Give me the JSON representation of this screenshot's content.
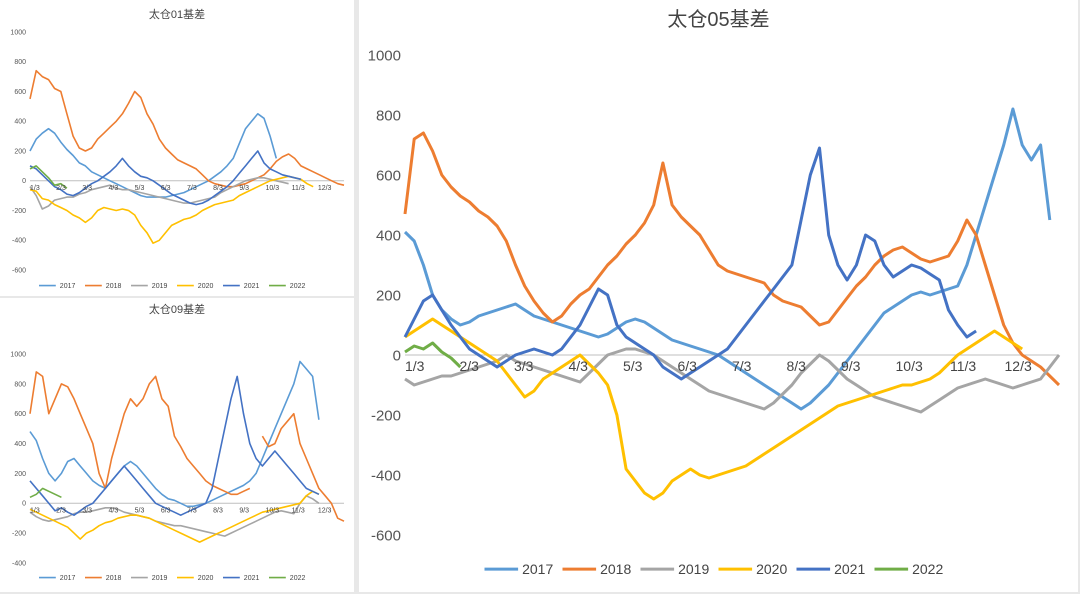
{
  "colors": {
    "2017": "#5b9bd5",
    "2018": "#ed7d31",
    "2019": "#a5a5a5",
    "2020": "#ffc000",
    "2021": "#4472c4",
    "2022": "#70ad47"
  },
  "chart_data": [
    {
      "type": "line",
      "title": "太仓01基差",
      "ylim": [
        -600,
        1000
      ],
      "yticks": [
        "1000",
        "800",
        "600",
        "400",
        "200",
        "0",
        "-200",
        "-400",
        "-600"
      ],
      "xticks": [
        "1/3",
        "2/3",
        "3/3",
        "4/3",
        "5/3",
        "6/3",
        "7/3",
        "8/3",
        "9/3",
        "10/3",
        "11/3",
        "12/3"
      ],
      "grid": false,
      "legend_position": "bottom",
      "series": [
        {
          "name": "2017",
          "values": [
            200,
            280,
            320,
            350,
            320,
            260,
            210,
            170,
            120,
            100,
            60,
            40,
            20,
            0,
            -20,
            -40,
            -60,
            -80,
            -100,
            -110,
            -110,
            -110,
            -110,
            -100,
            -90,
            -80,
            -60,
            -40,
            -20,
            0,
            30,
            60,
            100,
            150,
            250,
            350,
            400,
            450,
            420,
            300,
            150
          ]
        },
        {
          "name": "2018",
          "values": [
            550,
            740,
            700,
            680,
            620,
            600,
            450,
            300,
            220,
            200,
            220,
            280,
            320,
            360,
            400,
            450,
            520,
            600,
            560,
            450,
            380,
            280,
            220,
            180,
            140,
            120,
            100,
            80,
            40,
            0,
            -20,
            -30,
            -40,
            -40,
            -30,
            -20,
            0,
            20,
            40,
            80,
            130,
            160,
            180,
            150,
            100,
            80,
            60,
            40,
            20,
            0,
            -20,
            -30
          ]
        },
        {
          "name": "2019",
          "values": [
            -40,
            -100,
            -190,
            -170,
            -130,
            -120,
            -110,
            -110,
            -90,
            -80,
            -60,
            -50,
            -40,
            -30,
            -50,
            -60,
            -60,
            -70,
            -80,
            -90,
            -100,
            -110,
            -120,
            -130,
            -140,
            -150,
            -150,
            -140,
            -130,
            -120,
            -110,
            -80,
            -60,
            -40,
            -20,
            0,
            10,
            20,
            20,
            10,
            0,
            -10,
            -20
          ]
        },
        {
          "name": "2020",
          "values": [
            -60,
            -70,
            -120,
            -130,
            -160,
            -180,
            -200,
            -230,
            -250,
            -280,
            -250,
            -200,
            -180,
            -190,
            -200,
            -190,
            -200,
            -230,
            -300,
            -350,
            -420,
            -400,
            -350,
            -300,
            -280,
            -260,
            -250,
            -230,
            -200,
            -180,
            -160,
            -150,
            -140,
            -130,
            -100,
            -80,
            -60,
            -40,
            -20,
            0,
            10,
            20,
            30,
            20,
            10,
            -20,
            -40
          ]
        },
        {
          "name": "2021",
          "values": [
            100,
            80,
            40,
            0,
            -40,
            -60,
            -90,
            -100,
            -80,
            -50,
            -20,
            0,
            30,
            60,
            100,
            150,
            100,
            60,
            30,
            20,
            0,
            -30,
            -60,
            -90,
            -110,
            -130,
            -150,
            -160,
            -150,
            -130,
            -100,
            -70,
            -40,
            0,
            50,
            100,
            150,
            200,
            120,
            80,
            60,
            40,
            30,
            20,
            10
          ]
        },
        {
          "name": "2022",
          "values": [
            80,
            100,
            60,
            20,
            -30,
            -20,
            -50
          ]
        }
      ]
    },
    {
      "type": "line",
      "title": "太仓09基差",
      "ylim": [
        -400,
        1000
      ],
      "yticks": [
        "1000",
        "800",
        "600",
        "400",
        "200",
        "0",
        "-200",
        "-400"
      ],
      "xticks": [
        "1/3",
        "2/3",
        "3/3",
        "4/3",
        "5/3",
        "6/3",
        "7/3",
        "8/3",
        "9/3",
        "10/3",
        "11/3",
        "12/3"
      ],
      "grid": false,
      "legend_position": "bottom",
      "series": [
        {
          "name": "2017",
          "values": [
            480,
            420,
            300,
            200,
            150,
            200,
            280,
            300,
            250,
            200,
            150,
            120,
            100,
            150,
            200,
            250,
            280,
            250,
            200,
            150,
            100,
            60,
            30,
            20,
            0,
            -20,
            -20,
            -10,
            0,
            20,
            40,
            60,
            80,
            100,
            120,
            150,
            200,
            300,
            400,
            500,
            600,
            700,
            800,
            950,
            900,
            850,
            560
          ]
        },
        {
          "name": "2018",
          "values": [
            600,
            880,
            850,
            600,
            700,
            800,
            780,
            700,
            600,
            500,
            400,
            200,
            100,
            300,
            450,
            600,
            700,
            650,
            700,
            800,
            850,
            700,
            650,
            450,
            380,
            300,
            250,
            200,
            150,
            120,
            100,
            80,
            60,
            60,
            80,
            100,
            null,
            450,
            380,
            400,
            500,
            550,
            600,
            400,
            300,
            200,
            100,
            50,
            0,
            -100,
            -120
          ]
        },
        {
          "name": "2019",
          "values": [
            -60,
            -90,
            -110,
            -120,
            -110,
            -100,
            -90,
            -70,
            -60,
            -60,
            -50,
            -40,
            -30,
            -30,
            -40,
            -60,
            -70,
            -80,
            -90,
            -100,
            -120,
            -130,
            -140,
            -150,
            -150,
            -160,
            -170,
            -180,
            -190,
            -200,
            -210,
            -220,
            -200,
            -180,
            -160,
            -140,
            -120,
            -100,
            -80,
            -60,
            -50,
            -60,
            -70,
            0,
            50,
            30,
            0
          ]
        },
        {
          "name": "2020",
          "values": [
            -40,
            -60,
            -80,
            -100,
            -120,
            -140,
            -160,
            -200,
            -240,
            -200,
            -180,
            -150,
            -130,
            -120,
            -100,
            -90,
            -80,
            -80,
            -90,
            -100,
            -120,
            -140,
            -160,
            -180,
            -200,
            -220,
            -240,
            -260,
            -240,
            -220,
            -200,
            -180,
            -160,
            -140,
            -120,
            -100,
            -80,
            -60,
            -50,
            -40,
            -30,
            -20,
            -10,
            0,
            50,
            80,
            60
          ]
        },
        {
          "name": "2021",
          "values": [
            150,
            100,
            50,
            0,
            -50,
            -30,
            -60,
            -80,
            -50,
            -20,
            0,
            50,
            100,
            150,
            200,
            250,
            200,
            150,
            100,
            50,
            0,
            -20,
            -40,
            -60,
            -80,
            -60,
            -40,
            -20,
            0,
            100,
            300,
            500,
            700,
            850,
            600,
            400,
            300,
            250,
            300,
            350,
            300,
            250,
            200,
            150,
            100,
            80,
            60
          ]
        },
        {
          "name": "2022",
          "values": [
            40,
            60,
            100,
            80,
            60,
            40
          ]
        }
      ]
    },
    {
      "type": "line",
      "title": "太仓05基差",
      "ylim": [
        -600,
        1000
      ],
      "yticks": [
        "1000",
        "800",
        "600",
        "400",
        "200",
        "0",
        "-200",
        "-400",
        "-600"
      ],
      "xticks": [
        "1/3",
        "2/3",
        "3/3",
        "4/3",
        "5/3",
        "6/3",
        "7/3",
        "8/3",
        "9/3",
        "10/3",
        "11/3",
        "12/3"
      ],
      "grid": false,
      "legend_position": "bottom",
      "series": [
        {
          "name": "2017",
          "values": [
            410,
            380,
            300,
            200,
            150,
            120,
            100,
            110,
            130,
            140,
            150,
            160,
            170,
            150,
            130,
            120,
            110,
            100,
            90,
            80,
            70,
            60,
            70,
            90,
            110,
            120,
            110,
            90,
            70,
            50,
            40,
            30,
            20,
            10,
            0,
            -20,
            -40,
            -60,
            -80,
            -100,
            -120,
            -140,
            -160,
            -180,
            -160,
            -130,
            -100,
            -60,
            -20,
            20,
            60,
            100,
            140,
            160,
            180,
            200,
            210,
            200,
            210,
            220,
            230,
            300,
            400,
            500,
            600,
            700,
            820,
            700,
            650,
            700,
            450
          ]
        },
        {
          "name": "2018",
          "values": [
            470,
            720,
            740,
            680,
            600,
            560,
            530,
            510,
            480,
            460,
            430,
            380,
            300,
            230,
            180,
            140,
            110,
            130,
            170,
            200,
            220,
            260,
            300,
            330,
            370,
            400,
            440,
            500,
            640,
            500,
            460,
            430,
            400,
            350,
            300,
            280,
            270,
            260,
            250,
            240,
            200,
            180,
            170,
            160,
            130,
            100,
            110,
            150,
            190,
            230,
            260,
            300,
            330,
            350,
            360,
            340,
            320,
            310,
            320,
            330,
            380,
            450,
            400,
            300,
            200,
            100,
            40,
            0,
            -20,
            -40,
            -70,
            -100
          ]
        },
        {
          "name": "2019",
          "values": [
            -80,
            -100,
            -90,
            -80,
            -70,
            -70,
            -60,
            -50,
            -40,
            -30,
            -20,
            0,
            -20,
            -30,
            -40,
            -50,
            -60,
            -70,
            -80,
            -90,
            -60,
            -30,
            0,
            10,
            20,
            20,
            10,
            0,
            -20,
            -40,
            -60,
            -80,
            -100,
            -120,
            -130,
            -140,
            -150,
            -160,
            -170,
            -180,
            -160,
            -130,
            -100,
            -60,
            -30,
            0,
            -20,
            -50,
            -80,
            -100,
            -120,
            -140,
            -150,
            -160,
            -170,
            -180,
            -190,
            -170,
            -150,
            -130,
            -110,
            -100,
            -90,
            -80,
            -90,
            -100,
            -110,
            -100,
            -90,
            -80,
            -40,
            0
          ]
        },
        {
          "name": "2020",
          "values": [
            60,
            80,
            100,
            120,
            100,
            80,
            60,
            40,
            20,
            0,
            -20,
            -60,
            -100,
            -140,
            -120,
            -80,
            -60,
            -40,
            -20,
            0,
            -30,
            -60,
            -100,
            -200,
            -380,
            -420,
            -460,
            -480,
            -460,
            -420,
            -400,
            -380,
            -400,
            -410,
            -400,
            -390,
            -380,
            -370,
            -350,
            -330,
            -310,
            -290,
            -270,
            -250,
            -230,
            -210,
            -190,
            -170,
            -160,
            -150,
            -140,
            -130,
            -120,
            -110,
            -100,
            -100,
            -90,
            -80,
            -60,
            -30,
            0,
            20,
            40,
            60,
            80,
            60,
            40,
            20
          ]
        },
        {
          "name": "2021",
          "values": [
            60,
            120,
            180,
            200,
            150,
            100,
            60,
            20,
            0,
            -20,
            -40,
            -20,
            0,
            10,
            20,
            10,
            0,
            20,
            60,
            100,
            160,
            220,
            200,
            100,
            60,
            40,
            20,
            0,
            -40,
            -60,
            -80,
            -60,
            -40,
            -20,
            0,
            20,
            60,
            100,
            140,
            180,
            220,
            260,
            300,
            450,
            600,
            690,
            400,
            300,
            250,
            300,
            400,
            380,
            300,
            260,
            280,
            300,
            290,
            270,
            250,
            150,
            100,
            60,
            80
          ]
        },
        {
          "name": "2022",
          "values": [
            10,
            30,
            20,
            40,
            10,
            -10,
            -40
          ]
        }
      ]
    }
  ]
}
